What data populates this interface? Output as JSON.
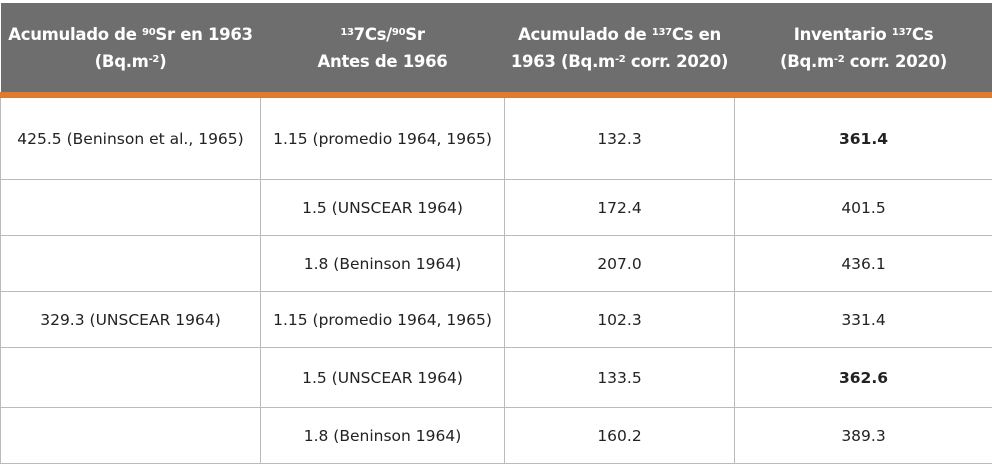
{
  "table": {
    "headers": [
      [
        {
          "t": "Acumulado de "
        },
        {
          "s": "90"
        },
        {
          "t": "Sr en 1963"
        },
        {
          "br": true
        },
        {
          "t": "(Bq.m"
        },
        {
          "s": "-2"
        },
        {
          "t": ")"
        }
      ],
      [
        {
          "s": "13"
        },
        {
          "t": "7Cs/"
        },
        {
          "s": "90"
        },
        {
          "t": "Sr"
        },
        {
          "br": true
        },
        {
          "t": "Antes de 1966"
        }
      ],
      [
        {
          "t": "Acumulado de "
        },
        {
          "s": "137"
        },
        {
          "t": "Cs en"
        },
        {
          "br": true
        },
        {
          "t": "1963 (Bq.m"
        },
        {
          "s": "-2"
        },
        {
          "t": " corr. 2020)"
        }
      ],
      [
        {
          "t": "Inventario "
        },
        {
          "s": "137"
        },
        {
          "t": "Cs"
        },
        {
          "br": true
        },
        {
          "t": "(Bq.m"
        },
        {
          "s": "-2"
        },
        {
          "t": " corr. 2020)"
        }
      ]
    ],
    "rows": [
      {
        "cells": [
          "425.5 (Beninson et al., 1965)",
          "1.15 (promedio 1964, 1965)",
          "132.3",
          "361.4"
        ],
        "bold_last": true
      },
      {
        "cells": [
          "",
          "1.5 (UNSCEAR 1964)",
          "172.4",
          "401.5"
        ],
        "bold_last": false
      },
      {
        "cells": [
          "",
          "1.8 (Beninson 1964)",
          "207.0",
          "436.1"
        ],
        "bold_last": false
      },
      {
        "cells": [
          "329.3 (UNSCEAR 1964)",
          "1.15 (promedio 1964, 1965)",
          "102.3",
          "331.4"
        ],
        "bold_last": false
      },
      {
        "cells": [
          "",
          "1.5 (UNSCEAR 1964)",
          "133.5",
          "362.6"
        ],
        "bold_last": true
      },
      {
        "cells": [
          "",
          "1.8 (Beninson 1964)",
          "160.2",
          "389.3"
        ],
        "bold_last": false
      }
    ]
  },
  "colors": {
    "header_bg": "#6e6e6e",
    "accent": "#e07b2e",
    "border": "#bbbbbb"
  }
}
